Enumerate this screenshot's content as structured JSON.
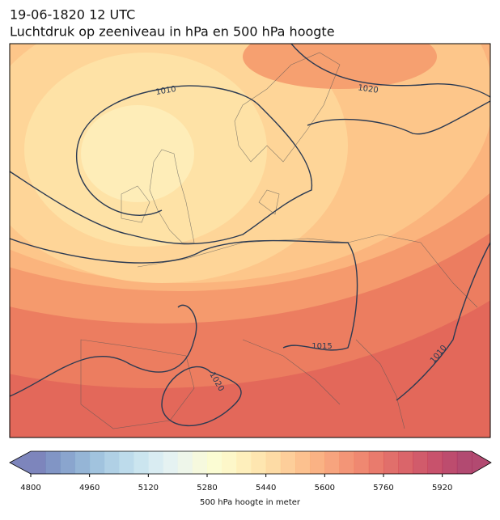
{
  "title": "19-06-1820 12 UTC",
  "subtitle": "Luchtdruk op zeeniveau in hPa en 500 hPa hoogte",
  "contour_labels": [
    "1010",
    "1020",
    "1015",
    "1010",
    "1020"
  ],
  "colorbar": {
    "label": "500 hPa hoogte in meter",
    "lim": [
      4800,
      6000
    ],
    "ticks": [
      4800,
      4960,
      5120,
      5280,
      5440,
      5600,
      5760,
      5920
    ],
    "colors": [
      "#6670b0",
      "#6b82bb",
      "#7595c5",
      "#82a8cf",
      "#91b9d8",
      "#a2c8e0",
      "#b2d5e7",
      "#c2e0ec",
      "#d2e9f0",
      "#e0f0f0",
      "#ebf5e6",
      "#f4f8d8",
      "#fafbcb",
      "#fdf6bf",
      "#feecb0",
      "#fee2a2",
      "#fdd595",
      "#fdc688",
      "#fcb67b",
      "#f9a56f",
      "#f69467",
      "#f1835f",
      "#ec7358",
      "#e56454",
      "#dc5651",
      "#d34a50",
      "#c93e51",
      "#be3452",
      "#b22d55",
      "#a52a58"
    ]
  }
}
